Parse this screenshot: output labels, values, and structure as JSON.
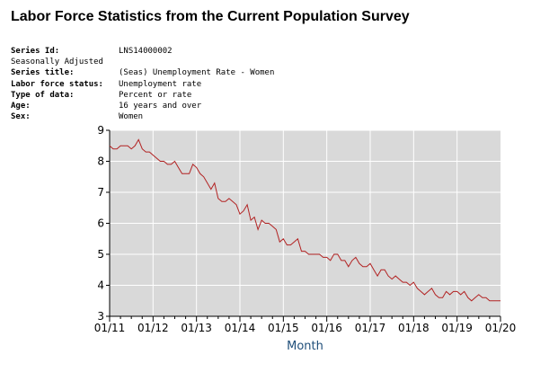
{
  "page_title": "Labor Force Statistics from the Current Population Survey",
  "meta": [
    {
      "label": "Series Id:",
      "value": "LNS14000002",
      "bold": true
    },
    {
      "label": "Seasonally Adjusted",
      "value": "",
      "bold": false
    },
    {
      "label": "Series title:",
      "value": "(Seas) Unemployment Rate - Women",
      "bold": true
    },
    {
      "label": "Labor force status:",
      "value": "Unemployment rate",
      "bold": true
    },
    {
      "label": "Type of data:",
      "value": "Percent or rate",
      "bold": true
    },
    {
      "label": "Age:",
      "value": "16 years and over",
      "bold": true
    },
    {
      "label": "Sex:",
      "value": "Women",
      "bold": true
    }
  ],
  "chart_data": {
    "type": "line",
    "xlabel": "Month",
    "ylabel": "",
    "ylim": [
      3,
      9
    ],
    "yticks": [
      3,
      4,
      5,
      6,
      7,
      8,
      9
    ],
    "xticks": [
      "01/11",
      "01/12",
      "01/13",
      "01/14",
      "01/15",
      "01/16",
      "01/17",
      "01/18",
      "01/19",
      "01/20"
    ],
    "grid": true,
    "background": "#d9d9d9",
    "line_color": "#b22222",
    "x_start": "2011-01",
    "series": [
      {
        "values": [
          8.5,
          8.4,
          8.4,
          8.5,
          8.5,
          8.5,
          8.4,
          8.5,
          8.7,
          8.4,
          8.3,
          8.3,
          8.2,
          8.1,
          8.0,
          8.0,
          7.9,
          7.9,
          8.0,
          7.8,
          7.6,
          7.6,
          7.6,
          7.9,
          7.8,
          7.6,
          7.5,
          7.3,
          7.1,
          7.3,
          6.8,
          6.7,
          6.7,
          6.8,
          6.7,
          6.6,
          6.3,
          6.4,
          6.6,
          6.1,
          6.2,
          5.8,
          6.1,
          6.0,
          6.0,
          5.9,
          5.8,
          5.4,
          5.5,
          5.3,
          5.3,
          5.4,
          5.5,
          5.1,
          5.1,
          5.0,
          5.0,
          5.0,
          5.0,
          4.9,
          4.9,
          4.8,
          5.0,
          5.0,
          4.8,
          4.8,
          4.6,
          4.8,
          4.9,
          4.7,
          4.6,
          4.6,
          4.7,
          4.5,
          4.3,
          4.5,
          4.5,
          4.3,
          4.2,
          4.3,
          4.2,
          4.1,
          4.1,
          4.0,
          4.1,
          3.9,
          3.8,
          3.7,
          3.8,
          3.9,
          3.7,
          3.6,
          3.6,
          3.8,
          3.7,
          3.8,
          3.8,
          3.7,
          3.8,
          3.6,
          3.5,
          3.6,
          3.7,
          3.6,
          3.6,
          3.5,
          3.5,
          3.5,
          3.5
        ]
      }
    ]
  }
}
